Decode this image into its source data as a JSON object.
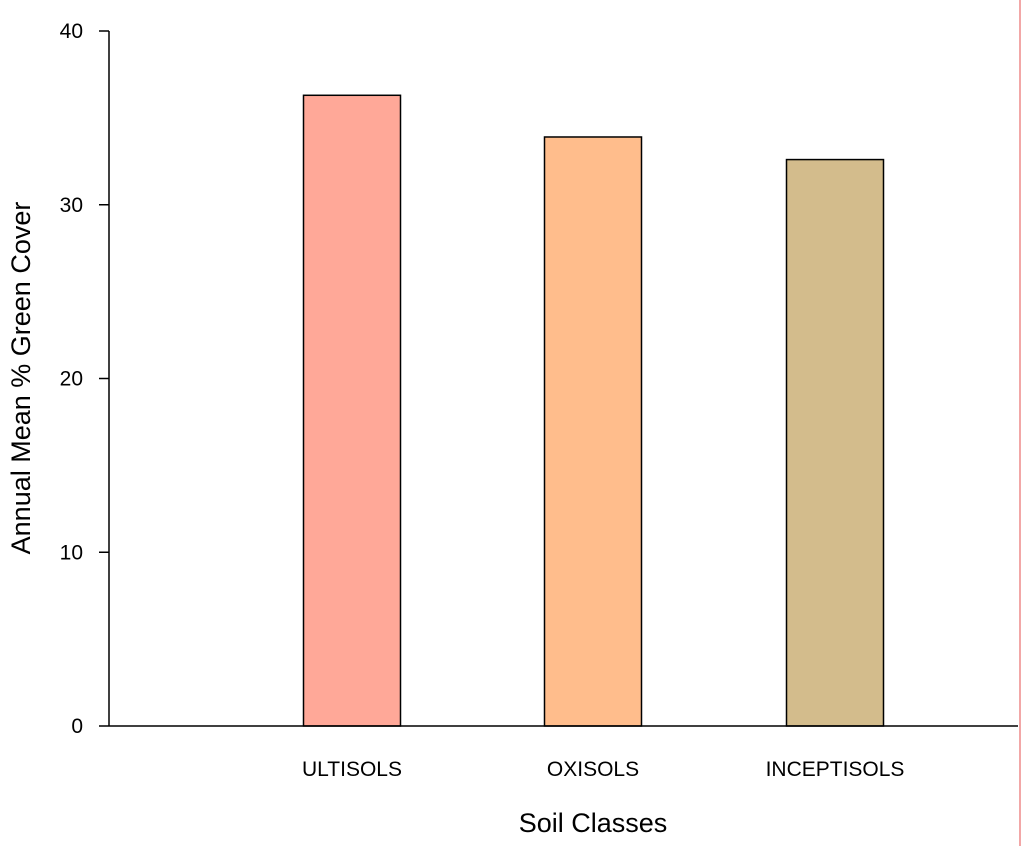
{
  "chart_data": {
    "type": "bar",
    "categories": [
      "ULTISOLS",
      "OXISOLS",
      "INCEPTISOLS"
    ],
    "values": [
      36.3,
      33.9,
      32.6
    ],
    "bar_colors": [
      "#ffa898",
      "#ffbd8c",
      "#d3bc8c"
    ],
    "xlabel": "Soil Classes",
    "ylabel": "Annual Mean % Green Cover",
    "ylim": [
      0,
      40
    ],
    "yticks": [
      0,
      10,
      20,
      30,
      40
    ],
    "grid": false,
    "legend": "none"
  },
  "colors": {
    "axis": "#000000",
    "bar_outline": "#000000",
    "right_edge_line": "#ee8a8a"
  }
}
